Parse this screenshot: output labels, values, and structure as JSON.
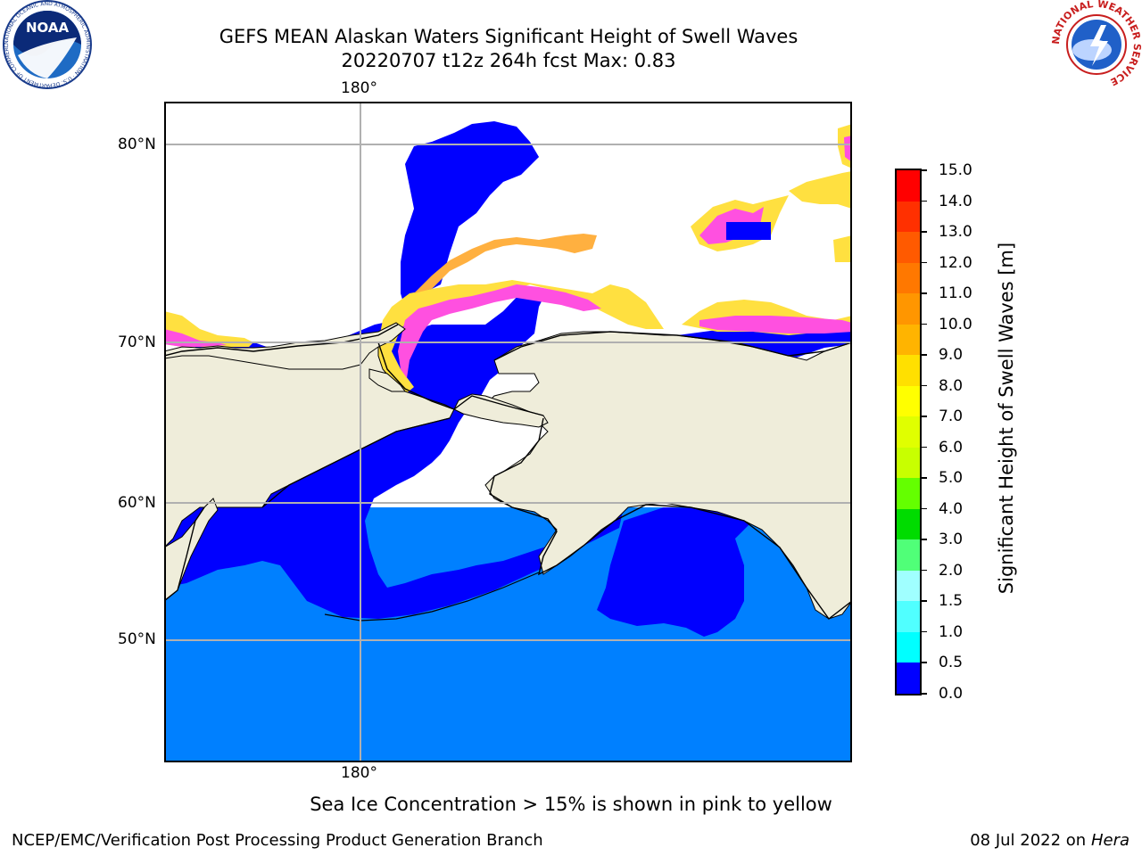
{
  "header": {
    "title_line1": "GEFS MEAN Alaskan Waters Significant Height of Swell Waves",
    "title_line2": "20220707 t12z 264h fcst   Max: 0.83"
  },
  "logos": {
    "noaa_text": "NOAA",
    "noaa_ring_text": "NATIONAL OCEANIC AND ATMOSPHERIC ADMINISTRATION · U.S. DEPARTMENT OF COMMERCE",
    "nws_ring_text": "NATIONAL WEATHER SERVICE"
  },
  "map": {
    "lon_label_top": "180°",
    "lon_label_bottom": "180°",
    "lat_labels": [
      "80°N",
      "70°N",
      "60°N",
      "50°N"
    ],
    "colors": {
      "land": "#efedda",
      "ocean_low": "#0000ff",
      "ocean_mid": "#0080ff",
      "ice_pink": "#ff50e0",
      "ice_orange": "#ffb040",
      "ice_yellow": "#ffe040",
      "grid": "#b0b0b0"
    }
  },
  "colorbar": {
    "label": "Significant Height of Swell Waves [m]",
    "ticks": [
      "15.0",
      "14.0",
      "13.0",
      "12.0",
      "11.0",
      "10.0",
      "9.0",
      "8.0",
      "7.0",
      "6.0",
      "5.0",
      "4.0",
      "3.0",
      "2.0",
      "1.5",
      "1.0",
      "0.5",
      "0.0"
    ],
    "colors": [
      "#ff0000",
      "#ff3000",
      "#ff5a00",
      "#ff7800",
      "#ff9600",
      "#ffb400",
      "#ffe000",
      "#ffff00",
      "#e0ff00",
      "#c8ff00",
      "#64ff00",
      "#00dc00",
      "#50ff78",
      "#a0ffff",
      "#50ffff",
      "#00ffff",
      "#0080ff",
      "#0000ff"
    ]
  },
  "note": "Sea Ice Concentration > 15% is shown in pink to yellow",
  "footer": {
    "left": "NCEP/EMC/Verification Post Processing Product Generation Branch",
    "date": "08 Jul 2022 on ",
    "host": "Hera"
  }
}
